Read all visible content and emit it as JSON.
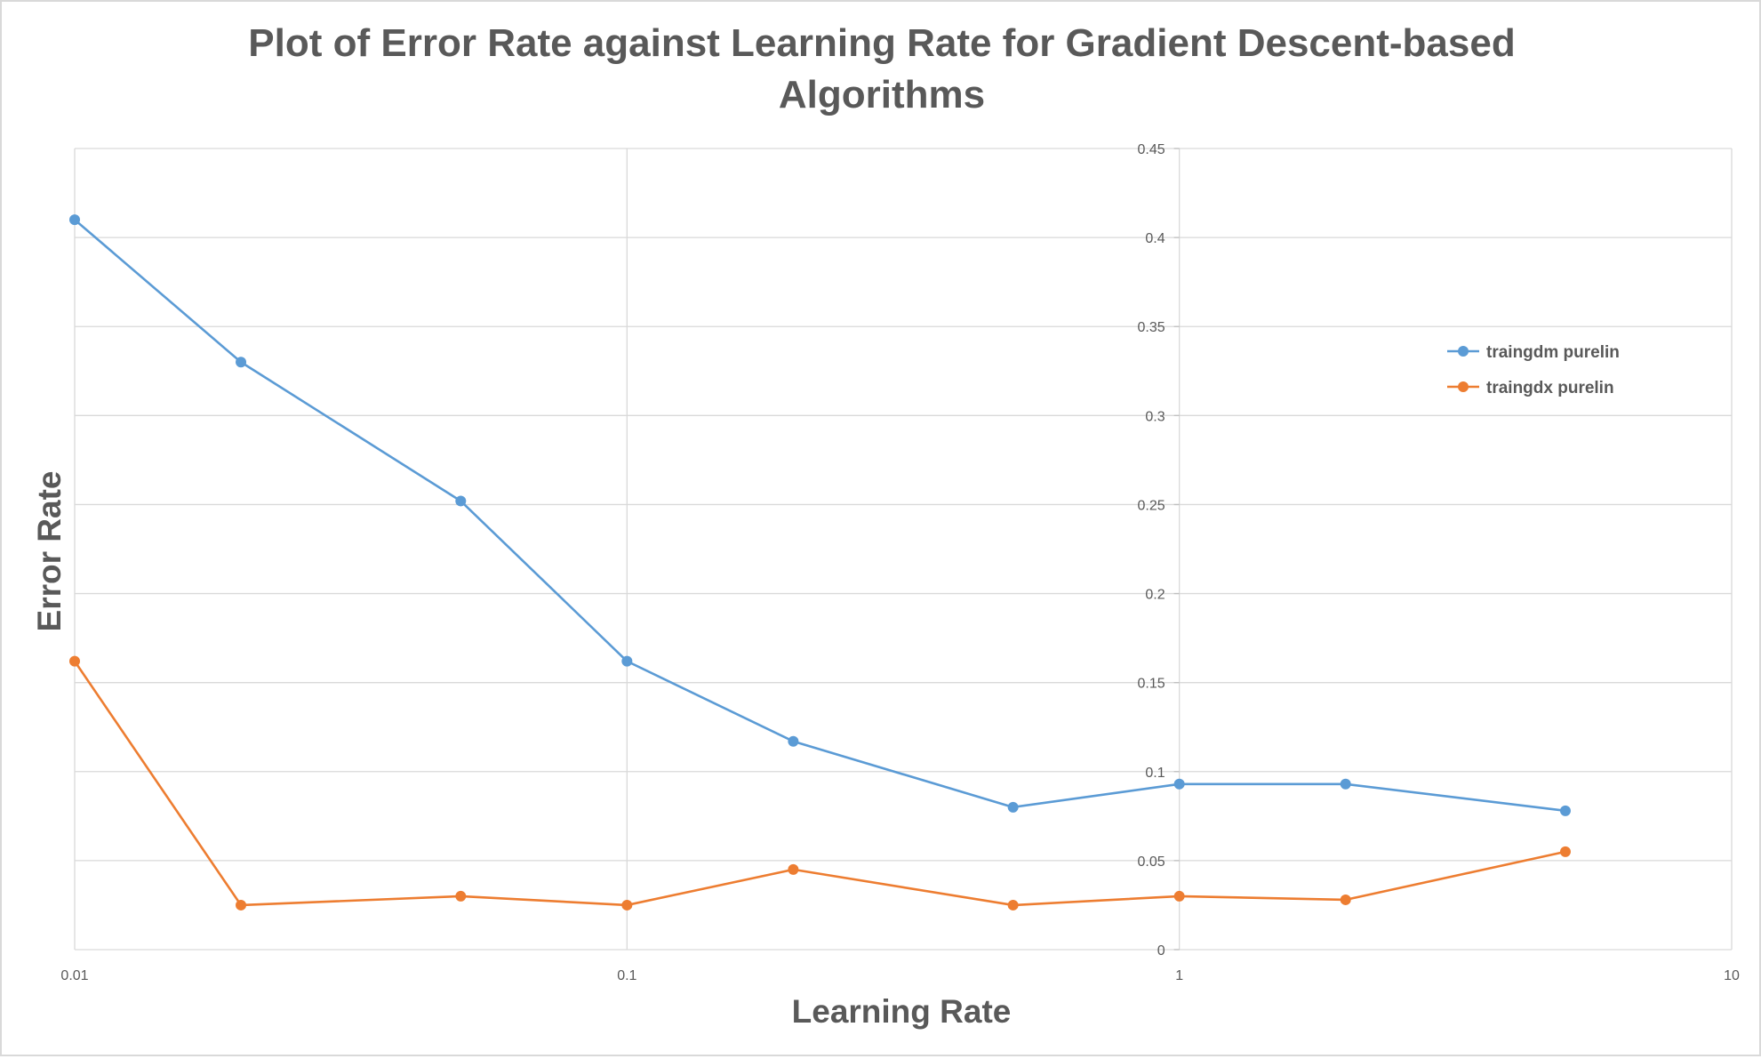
{
  "chart_data": {
    "type": "line",
    "title": "Plot of Error Rate against Learning Rate for Gradient Descent-based Algorithms",
    "xlabel": "Learning Rate",
    "ylabel": "Error Rate",
    "x_scale": "log",
    "xlim": [
      0.01,
      10
    ],
    "ylim": [
      0,
      0.45
    ],
    "x_ticks": [
      "0.01",
      "0.1",
      "1",
      "10"
    ],
    "y_ticks": [
      "0",
      "0.05",
      "0.1",
      "0.15",
      "0.2",
      "0.25",
      "0.3",
      "0.35",
      "0.4",
      "0.45"
    ],
    "grid": true,
    "legend_position": "right",
    "x": [
      0.01,
      0.02,
      0.05,
      0.1,
      0.2,
      0.5,
      1,
      2,
      5
    ],
    "series": [
      {
        "name": "traingdm purelin",
        "color": "#5b9bd5",
        "values": [
          0.41,
          0.33,
          0.252,
          0.162,
          0.117,
          0.08,
          0.093,
          0.093,
          0.078
        ]
      },
      {
        "name": "traingdx purelin",
        "color": "#ed7d31",
        "values": [
          0.162,
          0.025,
          0.03,
          0.025,
          0.045,
          0.025,
          0.03,
          0.028,
          0.055
        ]
      }
    ]
  }
}
